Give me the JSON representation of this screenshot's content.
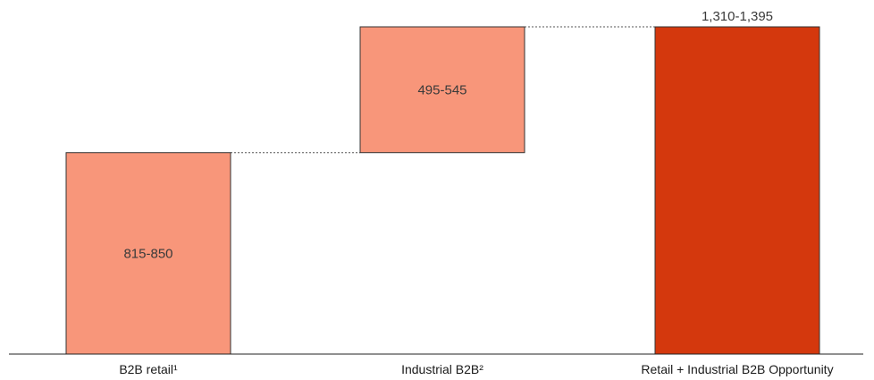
{
  "chart_data": {
    "type": "bar",
    "subtype": "waterfall",
    "categories": [
      "B2B retail¹",
      "Industrial B2B²",
      "Retail + Industrial B2B Opportunity"
    ],
    "bars": [
      {
        "label": "815-850",
        "base": 0,
        "value": 832.5,
        "role": "increment",
        "color": "#f8967a"
      },
      {
        "label": "495-545",
        "base": 832.5,
        "value": 520,
        "role": "increment",
        "color": "#f8967a"
      },
      {
        "label": "1,310-1,395",
        "base": 0,
        "value": 1352.5,
        "role": "total",
        "color": "#d4380d"
      }
    ],
    "ylim": [
      0,
      1352.5
    ],
    "grid": false,
    "legend": "none",
    "connectors": true,
    "bar_edge_color": "#333333",
    "connector_color": "#555555",
    "axis_color": "#222222"
  }
}
